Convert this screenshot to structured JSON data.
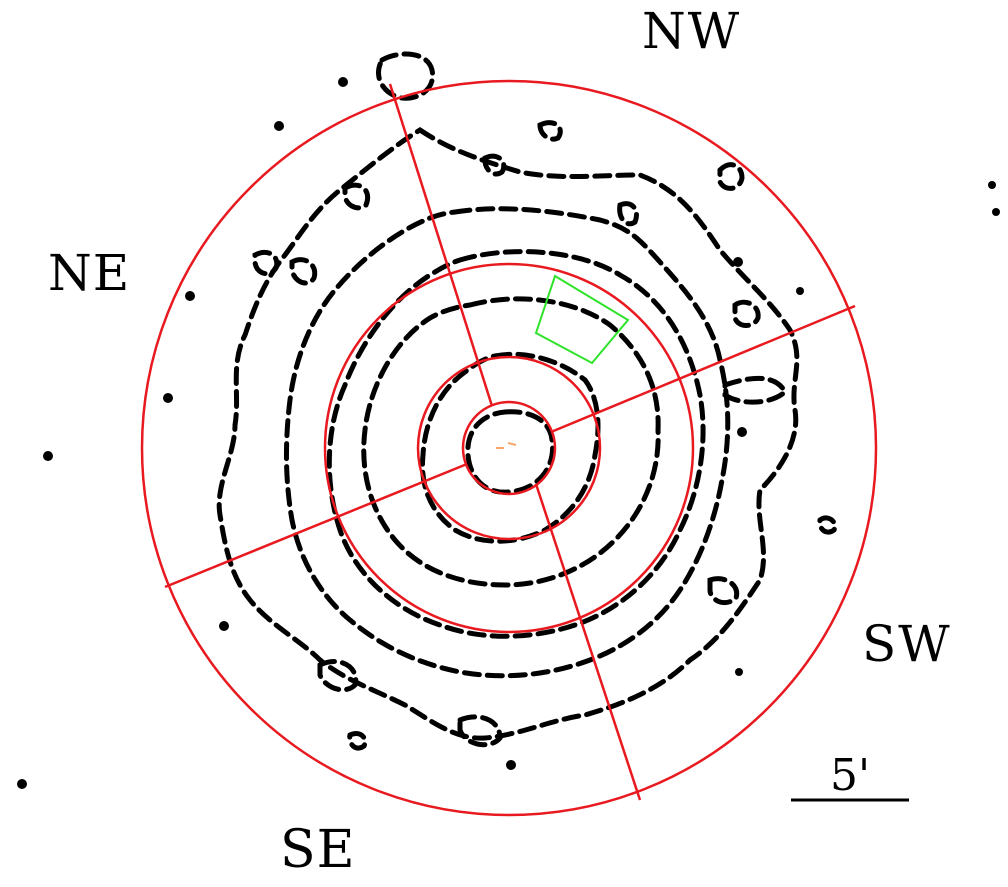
{
  "directions": {
    "nw": "NW",
    "ne": "NE",
    "sw": "SW",
    "se": "SE"
  },
  "scale_bar": {
    "label": "5'"
  },
  "colors": {
    "annulus_circles": "#e8191f",
    "sector_lines": "#e8191f",
    "contours": "#000000",
    "region_box": "#2fe32b",
    "center_marks": "#f7a86a"
  },
  "annuli_count": 4,
  "sectors": [
    "NW",
    "SW",
    "SE",
    "NE"
  ]
}
